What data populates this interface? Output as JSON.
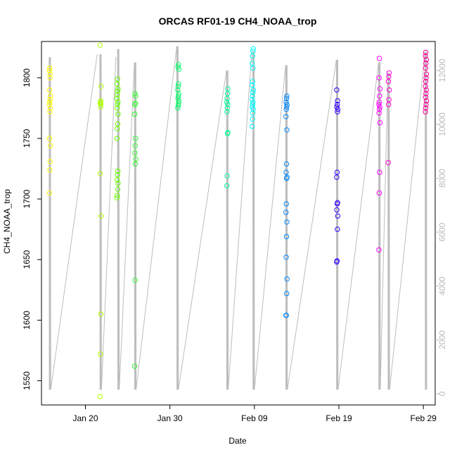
{
  "chart_data": {
    "type": "scatter",
    "title": "ORCAS RF01-19 CH4_NOAA_trop",
    "xlabel": "Date",
    "ylabel": "CH4_NOAA_trop",
    "x_range_days": [
      14.5,
      31.5
    ],
    "x_ticks": [
      {
        "label": "Jan 20",
        "day": 20
      },
      {
        "label": "Jan 30",
        "day": 30
      },
      {
        "label": "Feb 09",
        "day": 40
      },
      {
        "label": "Feb 19",
        "day": 50
      },
      {
        "label": "Feb 29",
        "day": 60
      }
    ],
    "ylim": [
      1530,
      1830
    ],
    "y_ticks": [
      1550,
      1600,
      1650,
      1700,
      1750,
      1800
    ],
    "y2lim": [
      0,
      13000
    ],
    "y2_ticks": [
      0,
      2000,
      4000,
      6000,
      8000,
      10000,
      12000
    ],
    "secondary_series_name": "altitude",
    "flights": [
      {
        "day": 15.8,
        "color": "#ffff00",
        "values": [
          1705,
          1724,
          1731,
          1744,
          1750,
          1772,
          1775,
          1778,
          1780,
          1782,
          1785,
          1790,
          1800,
          1803,
          1806,
          1808
        ]
      },
      {
        "day": 21.8,
        "color": "#b2ff00",
        "values": [
          1537,
          1572,
          1605,
          1686,
          1721,
          1776,
          1778,
          1779,
          1780,
          1781,
          1793,
          1827
        ]
      },
      {
        "day": 23.8,
        "color": "#66ff00",
        "values": [
          1701,
          1703,
          1708,
          1713,
          1716,
          1720,
          1723,
          1750,
          1758,
          1762,
          1770,
          1775,
          1778,
          1780,
          1783,
          1786,
          1789,
          1791,
          1795,
          1799
        ]
      },
      {
        "day": 25.9,
        "color": "#33ff33",
        "values": [
          1562,
          1633,
          1729,
          1733,
          1738,
          1744,
          1750,
          1770,
          1778,
          1779,
          1785,
          1787
        ]
      },
      {
        "day": 31.0,
        "color": "#00ff66",
        "values": [
          1775,
          1777,
          1779,
          1781,
          1783,
          1785,
          1787,
          1790,
          1793,
          1795,
          1807,
          1809,
          1811
        ]
      },
      {
        "day": 36.8,
        "color": "#00ff99",
        "values": [
          1711,
          1719,
          1754,
          1755,
          1772,
          1775,
          1778,
          1780,
          1783,
          1787,
          1791
        ]
      },
      {
        "day": 39.8,
        "color": "#00ffff",
        "values": [
          1760,
          1766,
          1771,
          1774,
          1776,
          1778,
          1780,
          1782,
          1785,
          1788,
          1790,
          1794,
          1797,
          1808,
          1812,
          1818,
          1822,
          1824
        ]
      },
      {
        "day": 43.8,
        "color": "#0088ff",
        "values": [
          1604,
          1604,
          1622,
          1634,
          1652,
          1669,
          1681,
          1689,
          1696,
          1717,
          1718,
          1722,
          1729,
          1757,
          1768,
          1774,
          1776,
          1778,
          1780,
          1783,
          1785
        ]
      },
      {
        "day": 49.8,
        "color": "#3300ff",
        "values": [
          1648,
          1649,
          1675,
          1686,
          1691,
          1696,
          1697,
          1718,
          1722,
          1772,
          1774,
          1776,
          1778,
          1781,
          1790
        ]
      },
      {
        "day": 54.8,
        "color": "#ff00ff",
        "values": [
          1658,
          1705,
          1722,
          1763,
          1771,
          1774,
          1776,
          1778,
          1780,
          1785,
          1791,
          1800,
          1816
        ]
      },
      {
        "day": 55.9,
        "color": "#ff00cc",
        "values": [
          1730,
          1778,
          1782,
          1790,
          1797,
          1801,
          1804
        ]
      },
      {
        "day": 60.3,
        "color": "#ff0099",
        "values": [
          1772,
          1775,
          1778,
          1781,
          1784,
          1787,
          1790,
          1793,
          1797,
          1800,
          1803,
          1808,
          1812,
          1815,
          1818,
          1821
        ]
      }
    ],
    "altitude_segments": [
      {
        "day": 15.8,
        "top": 12500,
        "bottom": 150,
        "next_day": 21.4,
        "next_alt": 12600
      },
      {
        "day": 21.8,
        "top": 12600,
        "bottom": 150,
        "next_day": 23.6,
        "next_alt": 12500
      },
      {
        "day": 23.9,
        "top": 12800,
        "bottom": 150,
        "next_day": 25.8,
        "next_alt": 12300
      },
      {
        "day": 25.9,
        "top": 12300,
        "bottom": 150,
        "next_day": 30.8,
        "next_alt": 12900
      },
      {
        "day": 30.9,
        "top": 12900,
        "bottom": 150,
        "next_day": 36.7,
        "next_alt": 12000
      },
      {
        "day": 36.8,
        "top": 12000,
        "bottom": 150,
        "next_day": 39.7,
        "next_alt": 12700
      },
      {
        "day": 39.9,
        "top": 12700,
        "bottom": 150,
        "next_day": 43.7,
        "next_alt": 12200
      },
      {
        "day": 43.8,
        "top": 12200,
        "bottom": 150,
        "next_day": 49.7,
        "next_alt": 12400
      },
      {
        "day": 49.8,
        "top": 12400,
        "bottom": 150,
        "next_day": 54.7,
        "next_alt": 12300
      },
      {
        "day": 54.8,
        "top": 12300,
        "bottom": 150,
        "next_day": 55.8,
        "next_alt": 11900
      },
      {
        "day": 55.9,
        "top": 11900,
        "bottom": 150,
        "next_day": 60.2,
        "next_alt": 12700
      },
      {
        "day": 60.3,
        "top": 12700,
        "bottom": 150,
        "next_day": null,
        "next_alt": null
      }
    ]
  }
}
